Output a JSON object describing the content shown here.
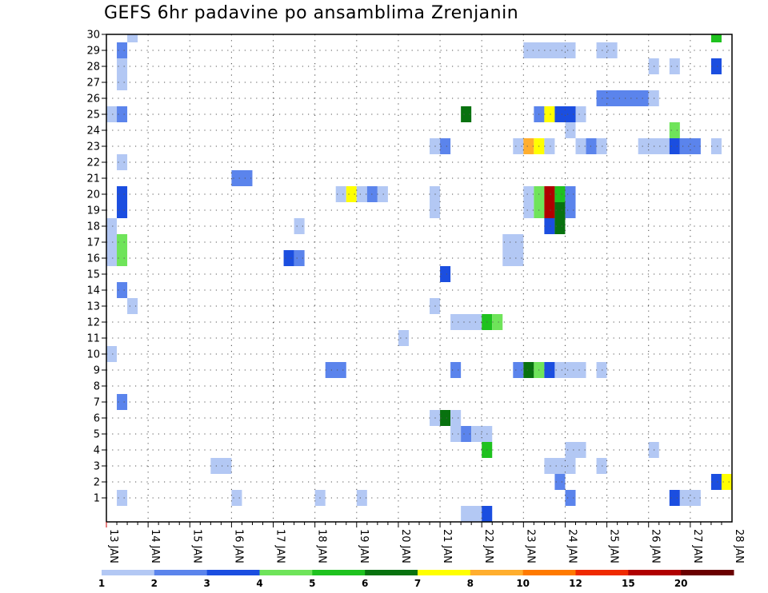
{
  "chart_data": {
    "type": "heatmap",
    "title": "GEFS 6hr padavine po ansamblima Zrenjanin",
    "xlabel": "",
    "ylabel": "",
    "y_ticks": [
      "1",
      "2",
      "3",
      "4",
      "5",
      "6",
      "7",
      "8",
      "9",
      "10",
      "11",
      "12",
      "13",
      "14",
      "15",
      "16",
      "17",
      "18",
      "19",
      "20",
      "21",
      "22",
      "23",
      "24",
      "25",
      "26",
      "27",
      "28",
      "29",
      "30"
    ],
    "x_ticks": [
      "13 JAN",
      "14 JAN",
      "15 JAN",
      "16 JAN",
      "17 JAN",
      "18 JAN",
      "19 JAN",
      "20 JAN",
      "21 JAN",
      "22 JAN",
      "23 JAN",
      "24 JAN",
      "25 JAN",
      "26 JAN",
      "27 JAN",
      "28 JAN"
    ],
    "xlim_days": [
      13,
      28
    ],
    "ylim": [
      0,
      30
    ],
    "colorbar_labels": [
      "1",
      "2",
      "3",
      "4",
      "5",
      "6",
      "7",
      "8",
      "10",
      "12",
      "15",
      "20"
    ],
    "colorbar_colors": [
      "#b3c8f4",
      "#5b84ec",
      "#1b4ee0",
      "#6fe45a",
      "#1fc21f",
      "#08720f",
      "#ffff00",
      "#ffae2e",
      "#ff7a00",
      "#ef2a00",
      "#b00000",
      "#6a0000"
    ],
    "cells_format": "[start_day, end_day, member, color_class]",
    "cells": [
      [
        13.5,
        13.75,
        30,
        1
      ],
      [
        27.5,
        27.75,
        30,
        5
      ],
      [
        13.25,
        13.5,
        29,
        2
      ],
      [
        23.0,
        24.25,
        29,
        1
      ],
      [
        24.75,
        25.25,
        29,
        1
      ],
      [
        13.25,
        13.5,
        28,
        1
      ],
      [
        26.0,
        26.25,
        28,
        1
      ],
      [
        26.5,
        26.75,
        28,
        1
      ],
      [
        27.5,
        27.75,
        28,
        3
      ],
      [
        13.25,
        13.5,
        27,
        1
      ],
      [
        24.75,
        26.0,
        26,
        2
      ],
      [
        26.0,
        26.25,
        26,
        1
      ],
      [
        13.0,
        13.25,
        25,
        1
      ],
      [
        13.25,
        13.5,
        25,
        2
      ],
      [
        21.5,
        21.75,
        25,
        6
      ],
      [
        23.25,
        23.5,
        25,
        2
      ],
      [
        23.5,
        23.75,
        25,
        7
      ],
      [
        23.75,
        24.25,
        25,
        3
      ],
      [
        24.25,
        24.5,
        25,
        1
      ],
      [
        24.0,
        24.25,
        24,
        1
      ],
      [
        26.5,
        26.75,
        24,
        4
      ],
      [
        20.75,
        21.0,
        23,
        1
      ],
      [
        21.0,
        21.25,
        23,
        2
      ],
      [
        22.75,
        23.0,
        23,
        1
      ],
      [
        23.0,
        23.25,
        23,
        8
      ],
      [
        23.25,
        23.5,
        23,
        7
      ],
      [
        23.5,
        23.75,
        23,
        1
      ],
      [
        24.25,
        24.5,
        23,
        1
      ],
      [
        24.5,
        24.75,
        23,
        2
      ],
      [
        24.75,
        25.0,
        23,
        1
      ],
      [
        25.75,
        26.5,
        23,
        1
      ],
      [
        26.5,
        26.75,
        23,
        3
      ],
      [
        26.75,
        27.25,
        23,
        2
      ],
      [
        27.5,
        27.75,
        23,
        1
      ],
      [
        13.25,
        13.5,
        22,
        1
      ],
      [
        16.0,
        16.5,
        21,
        2
      ],
      [
        13.25,
        13.5,
        20,
        3
      ],
      [
        18.5,
        18.75,
        20,
        1
      ],
      [
        18.75,
        19.0,
        20,
        7
      ],
      [
        19.0,
        19.25,
        20,
        1
      ],
      [
        19.25,
        19.5,
        20,
        2
      ],
      [
        19.5,
        19.75,
        20,
        1
      ],
      [
        20.75,
        21.0,
        20,
        1
      ],
      [
        23.0,
        23.25,
        20,
        1
      ],
      [
        23.25,
        23.5,
        20,
        4
      ],
      [
        23.5,
        23.75,
        20,
        11
      ],
      [
        23.75,
        24.0,
        20,
        5
      ],
      [
        24.0,
        24.25,
        20,
        2
      ],
      [
        13.25,
        13.5,
        19,
        3
      ],
      [
        20.75,
        21.0,
        19,
        1
      ],
      [
        23.0,
        23.25,
        19,
        1
      ],
      [
        23.25,
        23.5,
        19,
        4
      ],
      [
        23.5,
        23.75,
        19,
        11
      ],
      [
        23.75,
        24.0,
        19,
        6
      ],
      [
        24.0,
        24.25,
        19,
        2
      ],
      [
        23.5,
        23.75,
        18,
        3
      ],
      [
        23.75,
        24.0,
        18,
        6
      ],
      [
        13.0,
        13.25,
        18,
        1
      ],
      [
        17.5,
        17.75,
        18,
        1
      ],
      [
        13.0,
        13.25,
        17,
        1
      ],
      [
        13.25,
        13.5,
        17,
        4
      ],
      [
        22.5,
        23.0,
        17,
        1
      ],
      [
        13.0,
        13.25,
        16,
        1
      ],
      [
        13.25,
        13.5,
        16,
        4
      ],
      [
        17.25,
        17.5,
        16,
        3
      ],
      [
        17.5,
        17.75,
        16,
        2
      ],
      [
        22.5,
        23.0,
        16,
        1
      ],
      [
        21.0,
        21.25,
        15,
        3
      ],
      [
        13.25,
        13.5,
        14,
        2
      ],
      [
        13.5,
        13.75,
        13,
        1
      ],
      [
        20.75,
        21.0,
        13,
        1
      ],
      [
        21.25,
        22.0,
        12,
        1
      ],
      [
        22.0,
        22.25,
        12,
        5
      ],
      [
        22.25,
        22.5,
        12,
        4
      ],
      [
        20.0,
        20.25,
        11,
        1
      ],
      [
        13.0,
        13.25,
        10,
        1
      ],
      [
        18.25,
        18.75,
        9,
        2
      ],
      [
        21.25,
        21.5,
        9,
        2
      ],
      [
        22.75,
        23.0,
        9,
        2
      ],
      [
        23.0,
        23.25,
        9,
        6
      ],
      [
        23.25,
        23.5,
        9,
        4
      ],
      [
        23.5,
        23.75,
        9,
        3
      ],
      [
        23.75,
        24.5,
        9,
        1
      ],
      [
        24.75,
        25.0,
        9,
        1
      ],
      [
        13.25,
        13.5,
        7,
        2
      ],
      [
        20.75,
        21.0,
        6,
        1
      ],
      [
        21.0,
        21.25,
        6,
        6
      ],
      [
        21.25,
        21.5,
        6,
        1
      ],
      [
        21.25,
        21.5,
        5,
        1
      ],
      [
        21.5,
        21.75,
        5,
        2
      ],
      [
        21.75,
        22.25,
        5,
        1
      ],
      [
        22.0,
        22.25,
        4,
        5
      ],
      [
        24.0,
        24.5,
        4,
        1
      ],
      [
        26.0,
        26.25,
        4,
        1
      ],
      [
        15.5,
        16.0,
        3,
        1
      ],
      [
        23.5,
        24.25,
        3,
        1
      ],
      [
        24.75,
        25.0,
        3,
        1
      ],
      [
        23.75,
        24.0,
        2,
        2
      ],
      [
        27.5,
        27.75,
        2,
        3
      ],
      [
        27.75,
        28.0,
        2,
        7
      ],
      [
        13.25,
        13.5,
        1,
        1
      ],
      [
        16.0,
        16.25,
        1,
        1
      ],
      [
        18.0,
        18.25,
        1,
        1
      ],
      [
        19.0,
        19.25,
        1,
        1
      ],
      [
        24.0,
        24.25,
        1,
        2
      ],
      [
        26.5,
        26.75,
        1,
        3
      ],
      [
        26.75,
        27.25,
        1,
        1
      ],
      [
        21.5,
        22.0,
        0,
        1
      ],
      [
        22.0,
        22.25,
        0,
        3
      ]
    ]
  }
}
